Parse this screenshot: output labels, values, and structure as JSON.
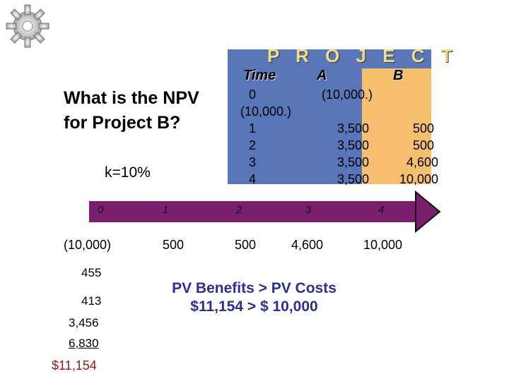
{
  "project_panel": {
    "title": "P R O J E C T",
    "header_time": "Time",
    "header_a": "A",
    "header_b": "B",
    "time_values": [
      "0",
      "1",
      "2",
      "3",
      "4"
    ],
    "project_a_values": [
      "(10,000.)",
      "3,500",
      "3,500",
      "3,500",
      "3,500"
    ],
    "project_b_values": [
      "(10,000.)",
      "500",
      "500",
      "4,600",
      "10,000"
    ],
    "colors": {
      "panel": "#5876b8",
      "b_column": "#f5bf6e"
    }
  },
  "question": "What is the NPV for Project B?",
  "discount_rate": "k=10%",
  "timeline": {
    "ticks": [
      "0",
      "1",
      "2",
      "3",
      "4"
    ],
    "cash_flows": [
      "(10,000)",
      "500",
      "500",
      "4,600",
      "10,000"
    ],
    "color": "#7a1f6e"
  },
  "present_values": [
    "455",
    "413",
    "3,456",
    "6,830"
  ],
  "pv_total": "$11,154",
  "conclusion": {
    "line1": "PV Benefits > PV Costs",
    "line2": "$11,154 > $ 10,000"
  }
}
